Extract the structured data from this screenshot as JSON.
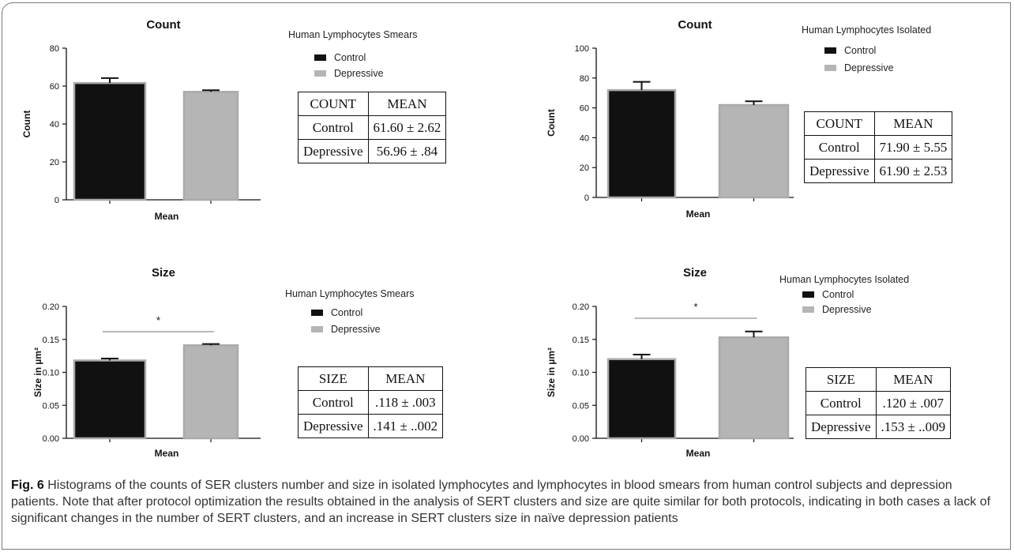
{
  "panels": [
    {
      "chart_data": {
        "type": "bar",
        "title": "Count",
        "xlabel": "Mean",
        "ylabel": "Count",
        "ylim": [
          0,
          80
        ],
        "yticks": [
          "0",
          "20",
          "40",
          "60",
          "80"
        ],
        "categories": [
          "Control",
          "Depressive"
        ],
        "values": [
          61.6,
          56.96
        ],
        "errors": [
          2.62,
          0.84
        ],
        "colors": [
          "#111111",
          "#b5b5b5"
        ],
        "significance": ""
      },
      "legend": {
        "title": "Human Lymphocytes  Smears",
        "items": [
          {
            "label": "Control",
            "color": "#111111"
          },
          {
            "label": "Depressive",
            "color": "#b5b5b5"
          }
        ]
      },
      "table": {
        "header": [
          "COUNT",
          "MEAN"
        ],
        "rows": [
          [
            "Control",
            "61.60  ± 2.62"
          ],
          [
            "Depressive",
            "56.96 ± .84"
          ]
        ]
      }
    },
    {
      "chart_data": {
        "type": "bar",
        "title": "Count",
        "xlabel": "Mean",
        "ylabel": "Count",
        "ylim": [
          0,
          100
        ],
        "yticks": [
          "0",
          "20",
          "40",
          "60",
          "80",
          "100"
        ],
        "categories": [
          "Control",
          "Depressive"
        ],
        "values": [
          71.9,
          61.9
        ],
        "errors": [
          5.55,
          2.53
        ],
        "colors": [
          "#111111",
          "#b5b5b5"
        ],
        "significance": ""
      },
      "legend": {
        "title": "Human Lymphocytes Isolated",
        "items": [
          {
            "label": "Control",
            "color": "#111111"
          },
          {
            "label": "Depressive",
            "color": "#b5b5b5"
          }
        ]
      },
      "table": {
        "header": [
          "COUNT",
          "MEAN"
        ],
        "rows": [
          [
            "Control",
            "71.90  ± 5.55"
          ],
          [
            "Depressive",
            "61.90 ±  2.53"
          ]
        ]
      }
    },
    {
      "chart_data": {
        "type": "bar",
        "title": "Size",
        "xlabel": "Mean",
        "ylabel": "Size in µm²",
        "ylim": [
          0,
          0.2
        ],
        "yticks": [
          "0.00",
          "0.05",
          "0.10",
          "0.15",
          "0.20"
        ],
        "categories": [
          "Control",
          "Depressive"
        ],
        "values": [
          0.118,
          0.141
        ],
        "errors": [
          0.003,
          0.002
        ],
        "colors": [
          "#111111",
          "#b5b5b5"
        ],
        "significance": "*"
      },
      "legend": {
        "title": "Human Lymphocytes  Smears",
        "items": [
          {
            "label": "Control",
            "color": "#111111"
          },
          {
            "label": "Depressive",
            "color": "#b5b5b5"
          }
        ]
      },
      "table": {
        "header": [
          "SIZE",
          "MEAN"
        ],
        "rows": [
          [
            "Control",
            ".118  ± .003"
          ],
          [
            "Depressive",
            ".141 ± ..002"
          ]
        ]
      }
    },
    {
      "chart_data": {
        "type": "bar",
        "title": "Size",
        "xlabel": "Mean",
        "ylabel": "Size in µm²",
        "ylim": [
          0,
          0.2
        ],
        "yticks": [
          "0.00",
          "0.05",
          "0.10",
          "0.15",
          "0.20"
        ],
        "categories": [
          "Control",
          "Depressive"
        ],
        "values": [
          0.12,
          0.153
        ],
        "errors": [
          0.007,
          0.009
        ],
        "colors": [
          "#111111",
          "#b5b5b5"
        ],
        "significance": "*"
      },
      "legend": {
        "title": "Human Lymphocytes Isolated",
        "items": [
          {
            "label": "Control",
            "color": "#111111"
          },
          {
            "label": "Depressive",
            "color": "#b5b5b5"
          }
        ]
      },
      "table": {
        "header": [
          "SIZE",
          "MEAN"
        ],
        "rows": [
          [
            "Control",
            ".120  ± .007"
          ],
          [
            "Depressive",
            ".153 ± ..009"
          ]
        ]
      }
    }
  ],
  "caption": {
    "label": "Fig. 6",
    "text": " Histograms of the counts of SER clusters number and size in isolated lymphocytes and lymphocytes in blood smears from human control subjects and depression patients. Note that after protocol optimization the results obtained in the analysis of SERT clusters and size are quite similar for both protocols, indicating in both cases a lack of significant changes in the number of SERT clusters, and an increase in SERT clusters size in naïve depression patients"
  }
}
